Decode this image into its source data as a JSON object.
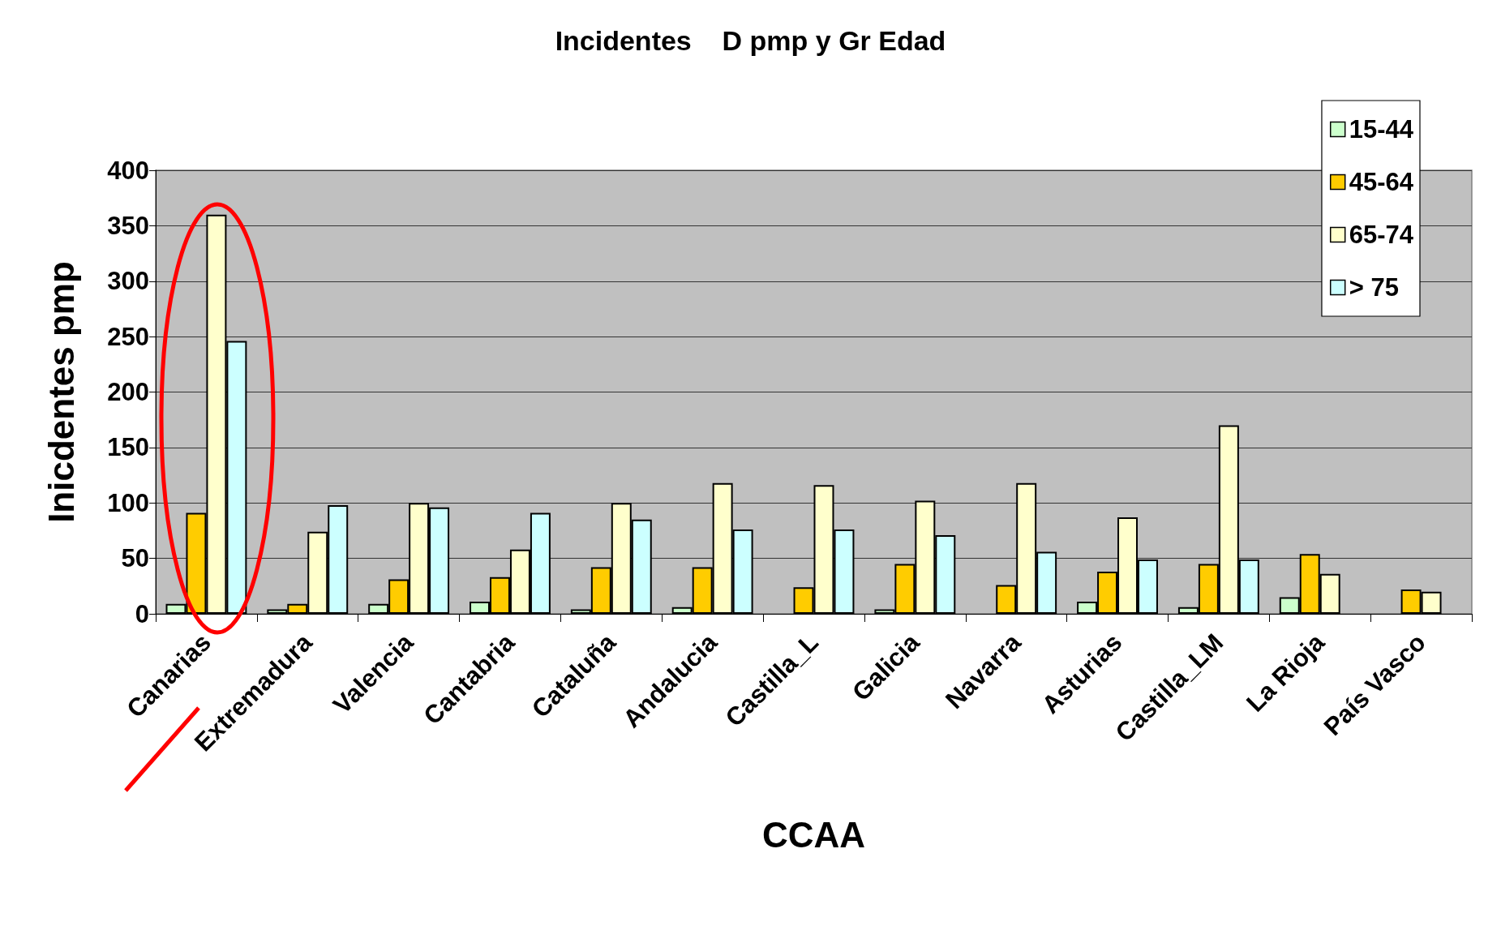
{
  "chart_data": {
    "type": "bar",
    "title": "Incidentes    D pmp y Gr Edad",
    "xlabel": "CCAA",
    "ylabel": "Inicdentes pmp",
    "categories": [
      "Canarias",
      "Extremadura",
      "Valencia",
      "Cantabria",
      "Cataluña",
      "Andalucia",
      "Castilla_L",
      "Galicia",
      "Navarra",
      "Asturias",
      "Castilla_LM",
      "La Rioja",
      "País Vasco"
    ],
    "series": [
      {
        "name": "15-44",
        "color": "#ccffcc",
        "values": [
          9,
          4,
          9,
          11,
          4,
          6,
          null,
          4,
          null,
          11,
          6,
          15,
          null
        ]
      },
      {
        "name": "45-64",
        "color": "#ffcc00",
        "values": [
          91,
          9,
          31,
          33,
          42,
          42,
          24,
          45,
          26,
          38,
          45,
          54,
          22
        ]
      },
      {
        "name": "65-74",
        "color": "#ffffcc",
        "values": [
          360,
          74,
          100,
          58,
          100,
          118,
          116,
          102,
          118,
          87,
          170,
          36,
          20
        ]
      },
      {
        "name": "> 75",
        "color": "#ccffff",
        "values": [
          246,
          98,
          96,
          91,
          85,
          76,
          76,
          71,
          56,
          49,
          49,
          null,
          null
        ]
      }
    ],
    "ylim": [
      0,
      400
    ],
    "yticks": [
      0,
      50,
      100,
      150,
      200,
      250,
      300,
      350,
      400
    ],
    "grid": "y",
    "legend": "top right"
  }
}
